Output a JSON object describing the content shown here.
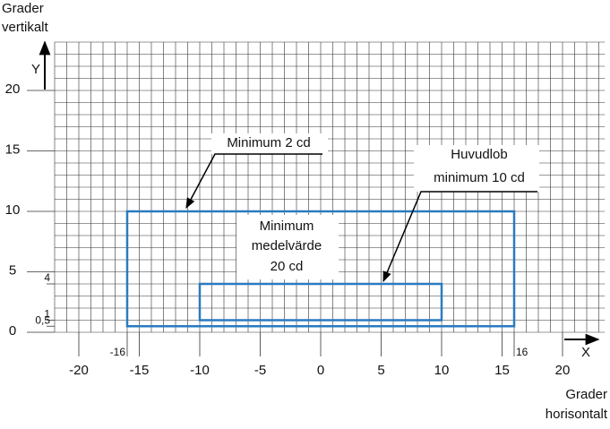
{
  "chart_data": {
    "type": "zones",
    "y_label": [
      "Grader",
      "vertikalt"
    ],
    "x_label": [
      "Grader",
      "horisontalt"
    ],
    "y_letter": "Y",
    "x_letter": "X",
    "xlim": [
      -22,
      23.5
    ],
    "ylim": [
      0,
      24
    ],
    "grid_step": 1,
    "xticks": [
      -20,
      -15,
      -10,
      -5,
      0,
      5,
      10,
      15,
      20
    ],
    "yticks": [
      0,
      5,
      10,
      15,
      20
    ],
    "xticks_extra": [
      -16,
      16
    ],
    "yticks_extra": [
      {
        "value": 0.5,
        "label": "0,5"
      },
      1,
      4
    ],
    "zones": [
      {
        "x": [
          -16,
          16
        ],
        "y": [
          0.5,
          10
        ],
        "color": "#2a7bc0"
      },
      {
        "x": [
          -10,
          10
        ],
        "y": [
          1,
          4
        ],
        "color": "#2a7bc0"
      }
    ],
    "annotations": [
      [
        "Minimum 2 cd"
      ],
      [
        "Huvudlob",
        "minimum 10 cd"
      ],
      [
        "Minimum",
        "medelvärde",
        "20 cd"
      ]
    ]
  }
}
